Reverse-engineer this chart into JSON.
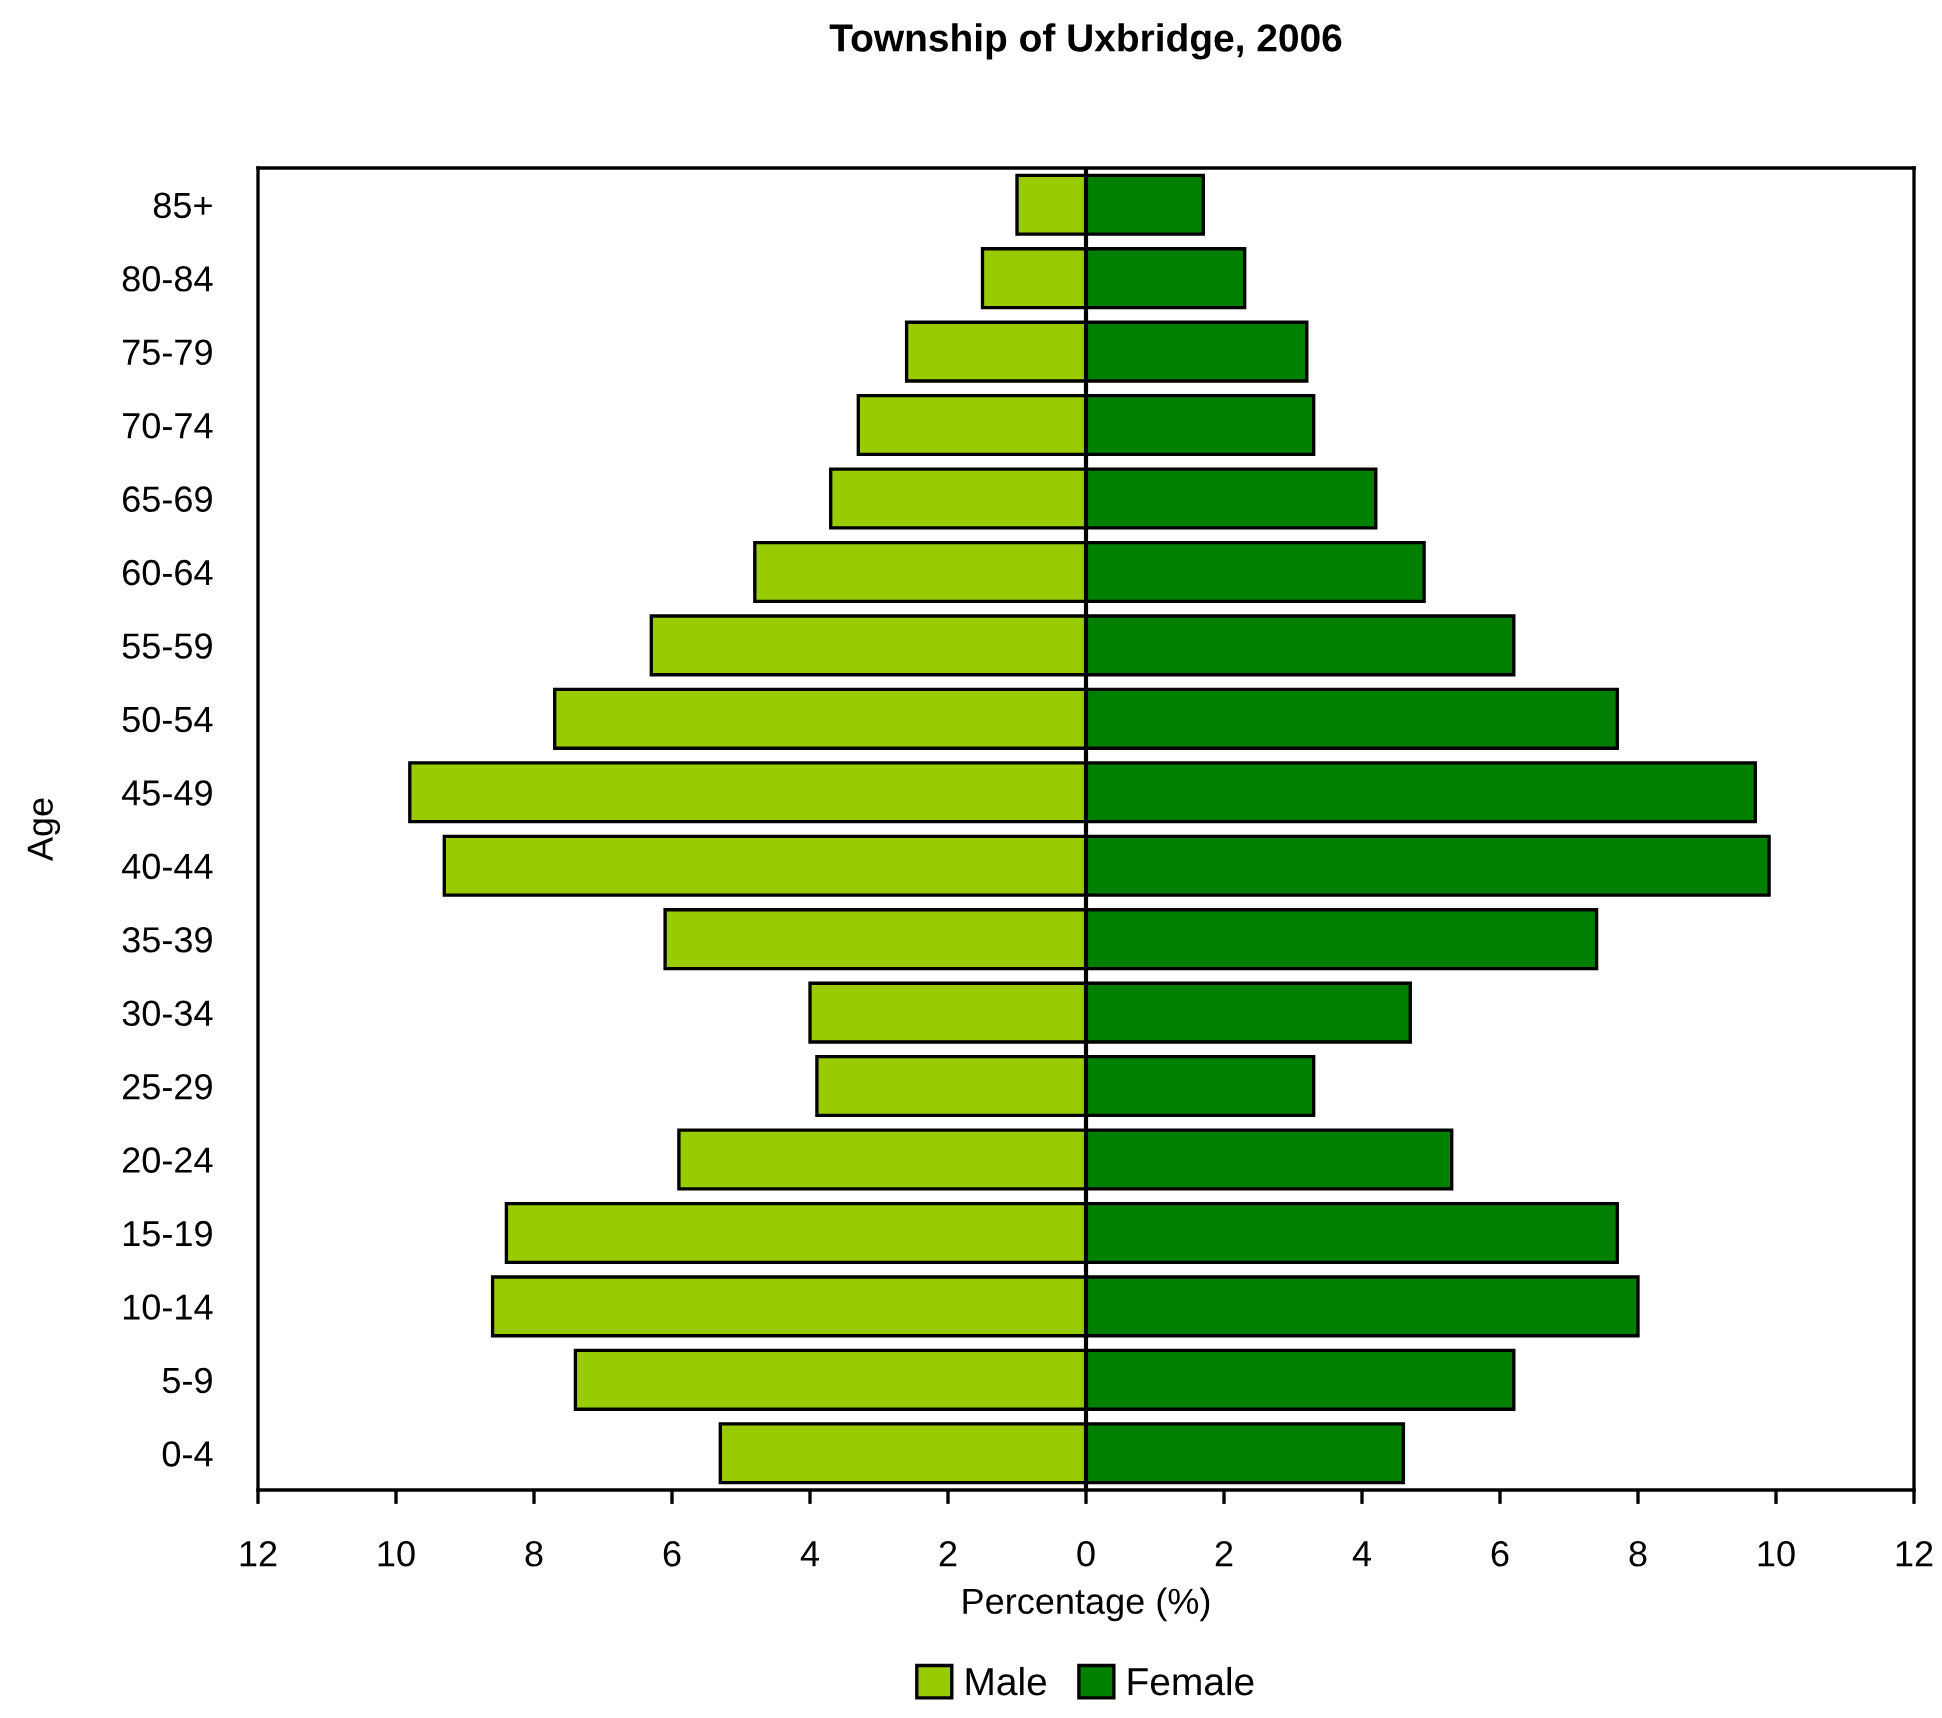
{
  "chart_data": {
    "type": "bar",
    "orientation": "horizontal",
    "stacked": true,
    "title": "Township of Uxbridge, 2006",
    "xlabel": "Percentage (%)",
    "ylabel": "Age",
    "categories": [
      "85+",
      "80-84",
      "75-79",
      "70-74",
      "65-69",
      "60-64",
      "55-59",
      "50-54",
      "45-49",
      "40-44",
      "35-39",
      "30-34",
      "25-29",
      "20-24",
      "15-19",
      "10-14",
      "5-9",
      "0-4"
    ],
    "series": [
      {
        "name": "Male",
        "color": "#99cc00",
        "values": [
          -1.0,
          -1.5,
          -2.6,
          -3.3,
          -3.7,
          -4.8,
          -6.3,
          -7.7,
          -9.8,
          -9.3,
          -6.1,
          -4.0,
          -3.9,
          -5.9,
          -8.4,
          -8.6,
          -7.4,
          -5.3
        ]
      },
      {
        "name": "Female",
        "color": "#008000",
        "values": [
          1.7,
          2.3,
          3.2,
          3.3,
          4.2,
          4.9,
          6.2,
          7.7,
          9.7,
          9.9,
          7.4,
          4.7,
          3.3,
          5.3,
          7.7,
          8.0,
          6.2,
          4.6
        ]
      }
    ],
    "xlim": [
      -12,
      12
    ],
    "xticks": [
      {
        "value": -12,
        "label": "12"
      },
      {
        "value": -10,
        "label": "10"
      },
      {
        "value": -8,
        "label": "8"
      },
      {
        "value": -6,
        "label": "6"
      },
      {
        "value": -4,
        "label": "4"
      },
      {
        "value": -2,
        "label": "2"
      },
      0,
      2,
      4,
      6,
      8,
      10,
      12
    ],
    "ref_lines": [
      {
        "axis": "x",
        "value": 0,
        "color": "#000000"
      }
    ],
    "grid": false,
    "legend": "bottom"
  }
}
